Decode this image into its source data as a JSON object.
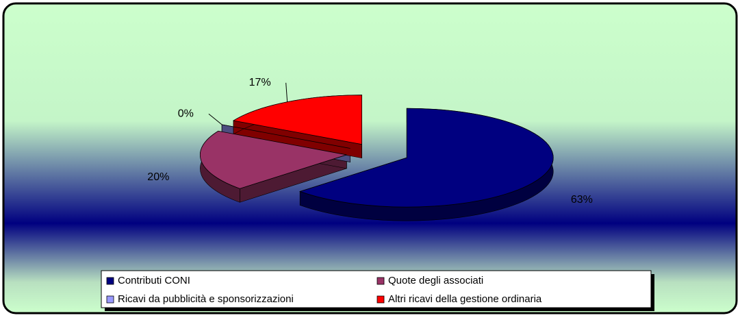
{
  "chart_data": {
    "type": "pie",
    "categories": [
      "Contributi CONI",
      "Quote degli associati",
      "Ricavi da pubblicità e sponsorizzazioni",
      "Altri ricavi della gestione ordinaria"
    ],
    "values": [
      63,
      20,
      0,
      17
    ],
    "value_labels": [
      "63%",
      "20%",
      "0%",
      "17%"
    ],
    "colors": [
      "#000080",
      "#993366",
      "#9999ff",
      "#ff0000"
    ],
    "legend": "bottom"
  }
}
